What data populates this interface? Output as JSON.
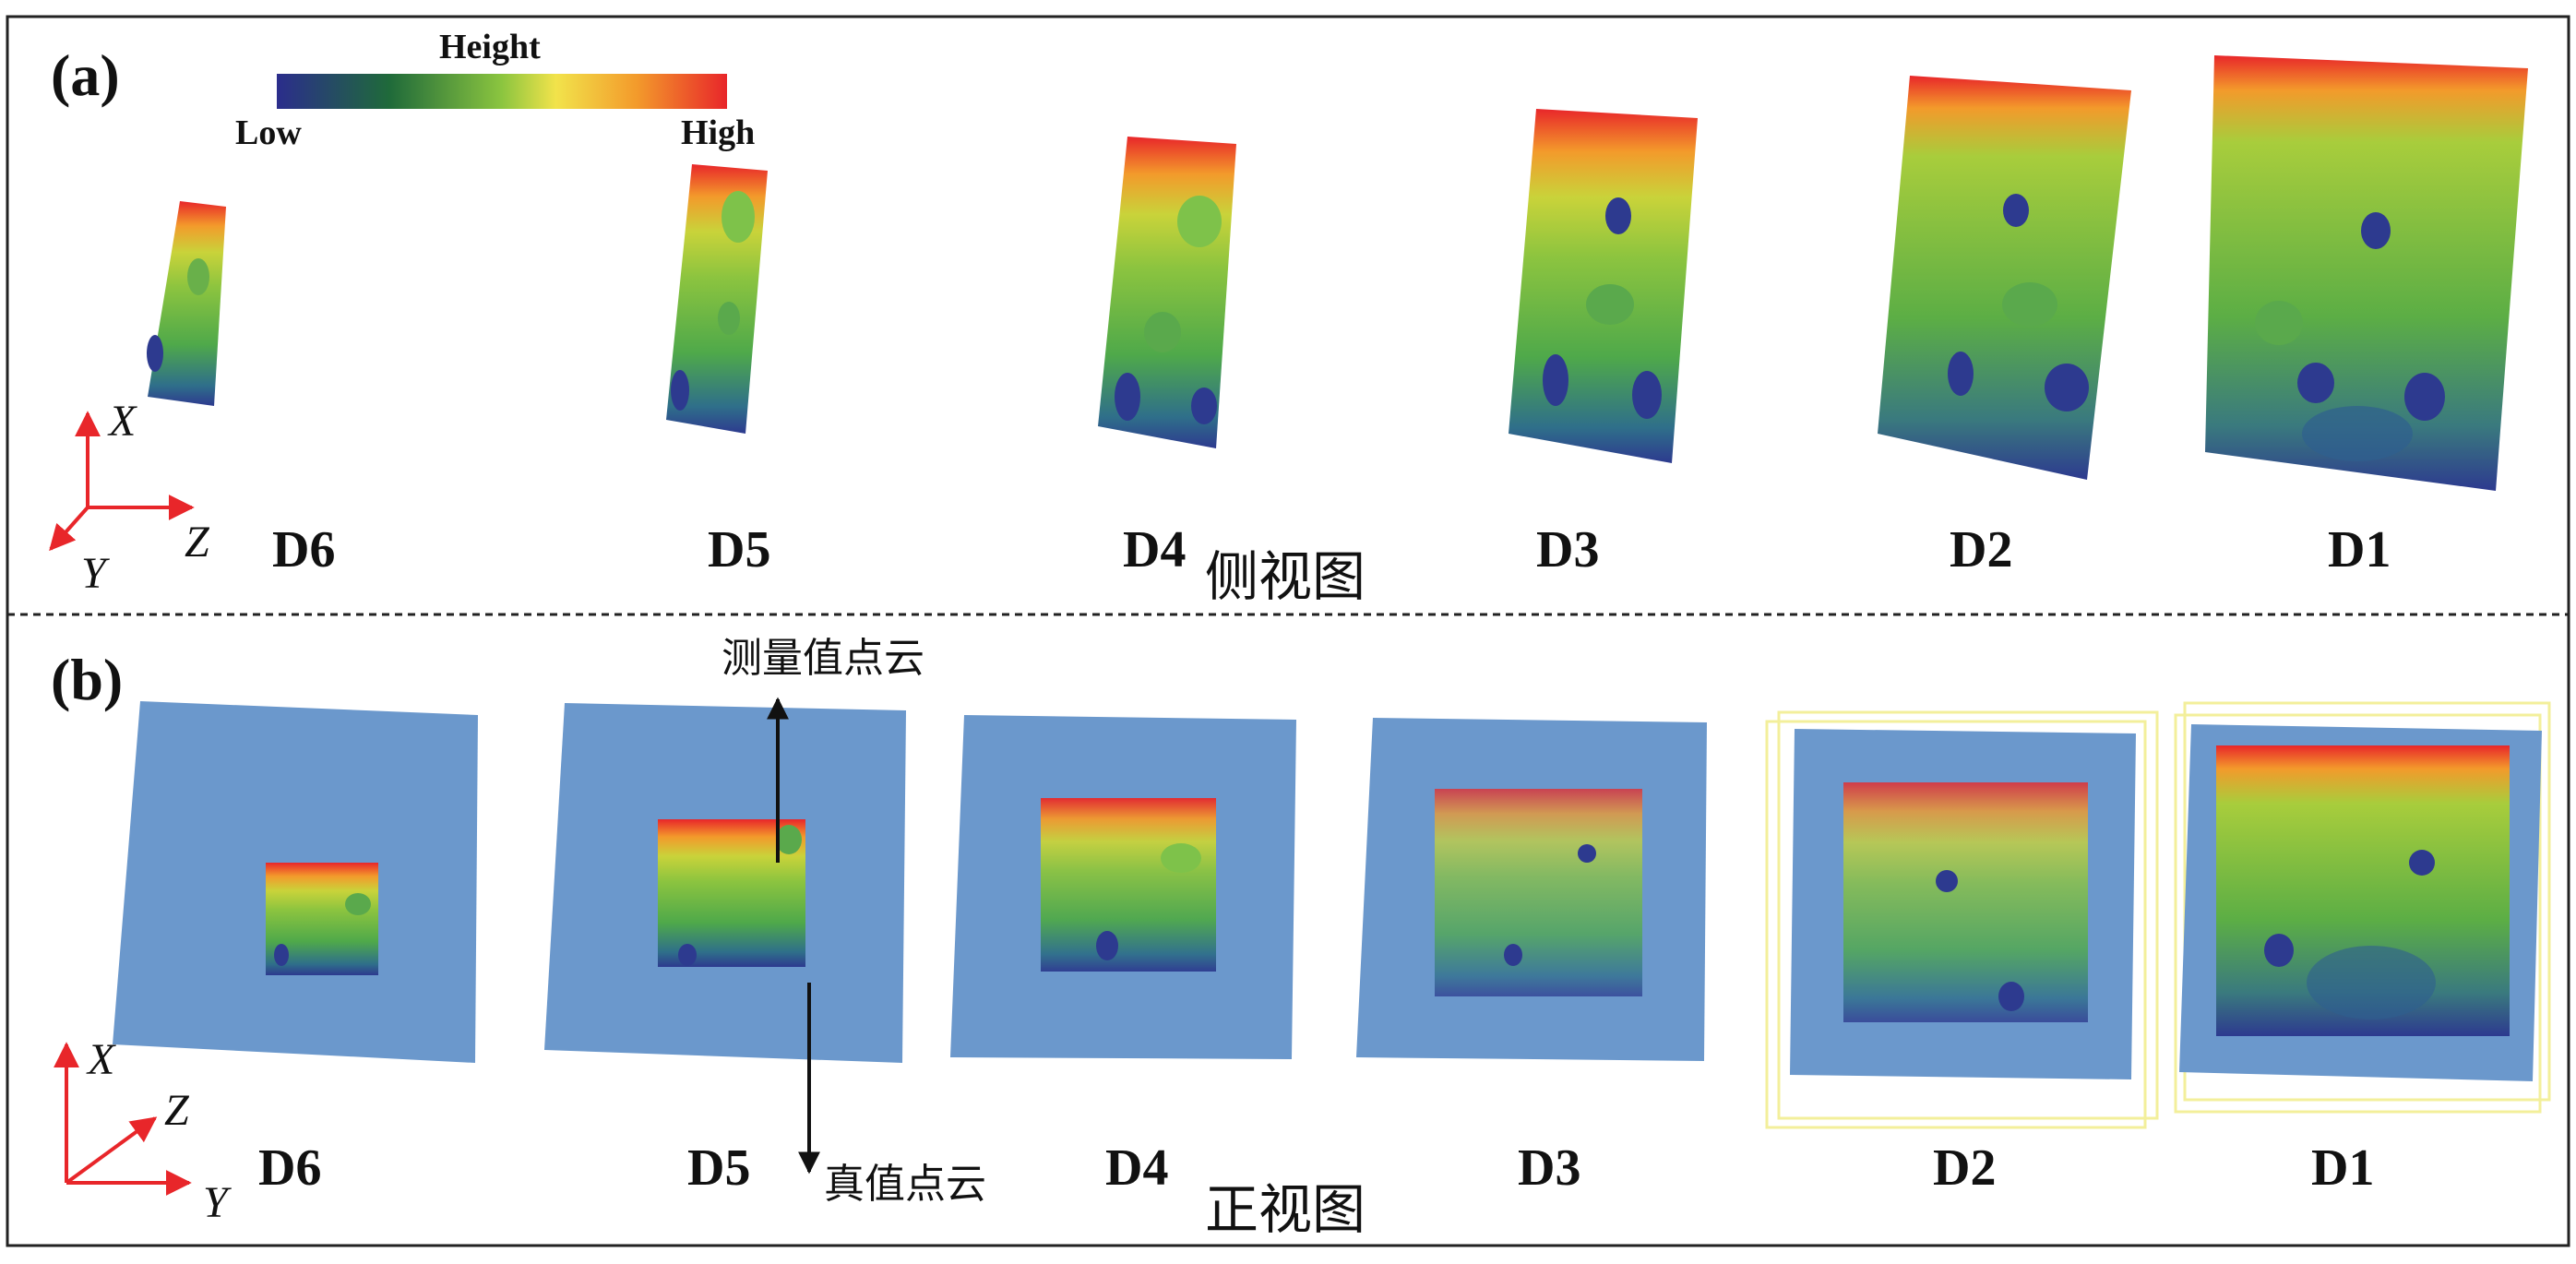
{
  "panel_a": {
    "label": "(a)",
    "colorbar": {
      "title": "Height",
      "low": "Low",
      "high": "High",
      "colors": [
        "#2b2d8c",
        "#1f6a3a",
        "#8bc53f",
        "#f2e34b",
        "#f39a2b",
        "#e8262a"
      ]
    },
    "axes": {
      "x": "X",
      "y": "Y",
      "z": "Z"
    },
    "view_title": "侧视图",
    "datasets": [
      "D6",
      "D5",
      "D4",
      "D3",
      "D2",
      "D1"
    ]
  },
  "panel_b": {
    "label": "(b)",
    "axes": {
      "x": "X",
      "y": "Y",
      "z": "Z"
    },
    "view_title": "正视图",
    "measured_label": "测量值点云",
    "truth_label": "真值点云",
    "datasets": [
      "D6",
      "D5",
      "D4",
      "D3",
      "D2",
      "D1"
    ]
  },
  "colors": {
    "blue_plane": "#6b98cc",
    "axis_red": "#e8262a",
    "frame_yellow": "#f3ef9b"
  }
}
